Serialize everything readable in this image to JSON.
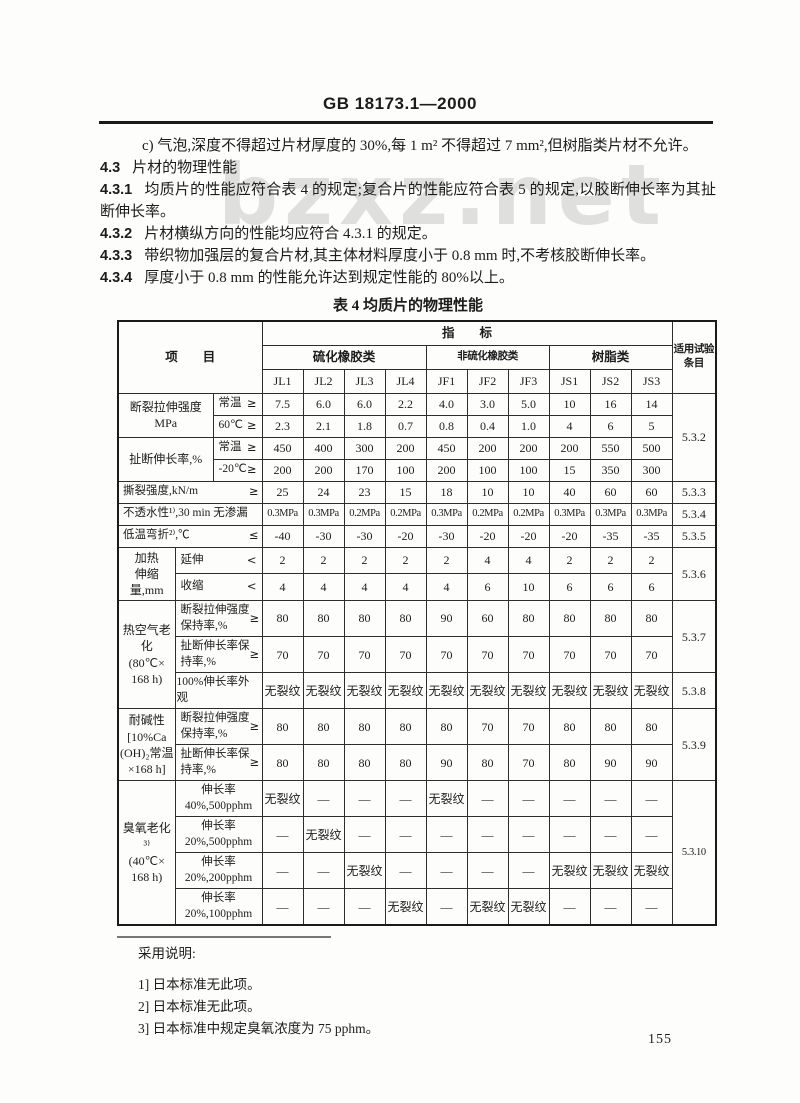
{
  "page": {
    "doc_number": "GB 18173.1—2000",
    "watermark": "bzxz.net",
    "page_number": "155"
  },
  "paragraphs": [
    {
      "num": "",
      "indent": true,
      "text": "c) 气泡,深度不得超过片材厚度的 30%,每 1 m² 不得超过 7 mm²,但树脂类片材不允许。"
    },
    {
      "num": "4.3",
      "text": "片材的物理性能"
    },
    {
      "num": "4.3.1",
      "text": "均质片的性能应符合表 4 的规定;复合片的性能应符合表 5 的规定,以胶断伸长率为其扯断伸长率。"
    },
    {
      "num": "4.3.2",
      "text": "片材横纵方向的性能均应符合 4.3.1 的规定。"
    },
    {
      "num": "4.3.3",
      "text": "带织物加强层的复合片材,其主体材料厚度小于 0.8 mm 时,不考核胶断伸长率。"
    },
    {
      "num": "4.3.4",
      "text": "厚度小于 0.8 mm 的性能允许达到规定性能的 80%以上。"
    }
  ],
  "table": {
    "title": "表 4  均质片的物理性能",
    "header": {
      "item_label": "项　　目",
      "index_label": "指　　标",
      "applicable_label": "适用试验\n条目",
      "groups": [
        {
          "label": "硫化橡胶类",
          "cols": [
            "JL1",
            "JL2",
            "JL3",
            "JL4"
          ]
        },
        {
          "label": "非硫化橡胶类",
          "cols": [
            "JF1",
            "JF2",
            "JF3"
          ]
        },
        {
          "label": "树脂类",
          "cols": [
            "JS1",
            "JS2",
            "JS3"
          ]
        }
      ]
    },
    "rows": [
      {
        "cells": [
          {
            "t": "断裂拉伸强度\nMPa",
            "rs": 2,
            "cs": 2,
            "c": "lbl"
          },
          {
            "t": "常温",
            "s": "≥",
            "c": "sub"
          },
          "7.5",
          "6.0",
          "6.0",
          "2.2",
          "4.0",
          "3.0",
          "5.0",
          "10",
          "16",
          "14",
          {
            "t": "5.3.2",
            "rs": 4,
            "n": "test-clause-ref"
          }
        ]
      },
      {
        "cells": [
          {
            "t": "60℃",
            "s": "≥",
            "c": "sub"
          },
          "2.3",
          "2.1",
          "1.8",
          "0.7",
          "0.8",
          "0.4",
          "1.0",
          "4",
          "6",
          "5"
        ]
      },
      {
        "cells": [
          {
            "t": "扯断伸长率,%",
            "rs": 2,
            "cs": 2,
            "c": "lbl"
          },
          {
            "t": "常温",
            "s": "≥",
            "c": "sub"
          },
          "450",
          "400",
          "300",
          "200",
          "450",
          "200",
          "200",
          "200",
          "550",
          "500"
        ]
      },
      {
        "cells": [
          {
            "t": "-20℃",
            "s": "≥",
            "c": "sub"
          },
          "200",
          "200",
          "170",
          "100",
          "200",
          "100",
          "100",
          "15",
          "350",
          "300"
        ]
      },
      {
        "cells": [
          {
            "t": "撕裂强度,kN/m",
            "s": "≥",
            "cs": 3,
            "c": "lbl2"
          },
          "25",
          "24",
          "23",
          "15",
          "18",
          "10",
          "10",
          "40",
          "60",
          "60",
          {
            "t": "5.3.3",
            "n": "test-clause-ref"
          }
        ]
      },
      {
        "cells": [
          {
            "t": "不透水性¹⁾,30 min 无渗漏",
            "cs": 3,
            "c": "lbl2"
          },
          "0.3MPa",
          "0.3MPa",
          "0.2MPa",
          "0.2MPa",
          "0.3MPa",
          "0.2MPa",
          "0.2MPa",
          "0.3MPa",
          "0.3MPa",
          "0.3MPa",
          {
            "t": "5.3.4",
            "n": "test-clause-ref"
          }
        ]
      },
      {
        "cells": [
          {
            "t": "低温弯折²⁾,℃",
            "s": "≤",
            "cs": 3,
            "c": "lbl2"
          },
          "-40",
          "-30",
          "-30",
          "-20",
          "-30",
          "-20",
          "-20",
          "-20",
          "-35",
          "-35",
          {
            "t": "5.3.5",
            "n": "test-clause-ref"
          }
        ]
      },
      {
        "cells": [
          {
            "t": "加热\n伸缩量,mm",
            "rs": 2,
            "c": "lbl"
          },
          {
            "t": "延伸",
            "s": "<",
            "cs": 2,
            "c": "sub"
          },
          "2",
          "2",
          "2",
          "2",
          "2",
          "4",
          "4",
          "2",
          "2",
          "2",
          {
            "t": "5.3.6",
            "rs": 2,
            "n": "test-clause-ref"
          }
        ]
      },
      {
        "cells": [
          {
            "t": "收缩",
            "s": "<",
            "cs": 2,
            "c": "sub"
          },
          "4",
          "4",
          "4",
          "4",
          "4",
          "6",
          "10",
          "6",
          "6",
          "6"
        ]
      },
      {
        "cells": [
          {
            "t": "热空气老化\n(80℃×\n168 h)",
            "rs": 3,
            "c": "lbl"
          },
          {
            "t": "断裂拉伸强度\n保持率,%",
            "s": "≥",
            "cs": 2,
            "c": "sub"
          },
          "80",
          "80",
          "80",
          "80",
          "90",
          "60",
          "80",
          "80",
          "80",
          "80",
          {
            "t": "5.3.7",
            "rs": 2,
            "n": "test-clause-ref"
          }
        ]
      },
      {
        "cells": [
          {
            "t": "扯断伸长率保\n持率,%",
            "s": "≥",
            "cs": 2,
            "c": "sub"
          },
          "70",
          "70",
          "70",
          "70",
          "70",
          "70",
          "70",
          "70",
          "70",
          "70"
        ]
      },
      {
        "cells": [
          {
            "t": "100%伸长率外\n观",
            "cs": 2,
            "c": "sub"
          },
          "无裂纹",
          "无裂纹",
          "无裂纹",
          "无裂纹",
          "无裂纹",
          "无裂纹",
          "无裂纹",
          "无裂纹",
          "无裂纹",
          "无裂纹",
          {
            "t": "5.3.8",
            "n": "test-clause-ref"
          }
        ]
      },
      {
        "cells": [
          {
            "t": "耐碱性\n[10%Ca\n(OH)₂常温\n×168 h]",
            "rs": 2,
            "c": "lbl"
          },
          {
            "t": "断裂拉伸强度\n保持率,%",
            "s": "≥",
            "cs": 2,
            "c": "sub"
          },
          "80",
          "80",
          "80",
          "80",
          "80",
          "70",
          "70",
          "80",
          "80",
          "80",
          {
            "t": "5.3.9",
            "rs": 2,
            "n": "test-clause-ref"
          }
        ]
      },
      {
        "cells": [
          {
            "t": "扯断伸长率保\n持率,%",
            "s": "≥",
            "cs": 2,
            "c": "sub"
          },
          "80",
          "80",
          "80",
          "80",
          "90",
          "80",
          "70",
          "80",
          "90",
          "90"
        ]
      },
      {
        "cells": [
          {
            "t": "臭氧老化³⁾\n(40℃×\n168 h)",
            "rs": 4,
            "c": "lbl"
          },
          {
            "t": "伸长率\n40%,500pphm",
            "cs": 2,
            "c": "subc"
          },
          "无裂纹",
          "—",
          "—",
          "—",
          "无裂纹",
          "—",
          "—",
          "—",
          "—",
          "—",
          {
            "t": "5.3.10",
            "rs": 4,
            "n": "test-clause-ref"
          }
        ]
      },
      {
        "cells": [
          {
            "t": "伸长率\n20%,500pphm",
            "cs": 2,
            "c": "subc"
          },
          "—",
          "无裂纹",
          "—",
          "—",
          "—",
          "—",
          "—",
          "—",
          "—",
          "—"
        ]
      },
      {
        "cells": [
          {
            "t": "伸长率\n20%,200pphm",
            "cs": 2,
            "c": "subc"
          },
          "—",
          "—",
          "无裂纹",
          "—",
          "—",
          "—",
          "—",
          "无裂纹",
          "无裂纹",
          "无裂纹"
        ]
      },
      {
        "cells": [
          {
            "t": "伸长率\n20%,100pphm",
            "cs": 2,
            "c": "subc"
          },
          "—",
          "—",
          "—",
          "无裂纹",
          "—",
          "无裂纹",
          "无裂纹",
          "—",
          "—",
          "—"
        ]
      }
    ]
  },
  "notes": {
    "title": "采用说明:",
    "items": [
      "1] 日本标准无此项。",
      "2] 日本标准无此项。",
      "3] 日本标准中规定臭氧浓度为 75 pphm。"
    ]
  }
}
